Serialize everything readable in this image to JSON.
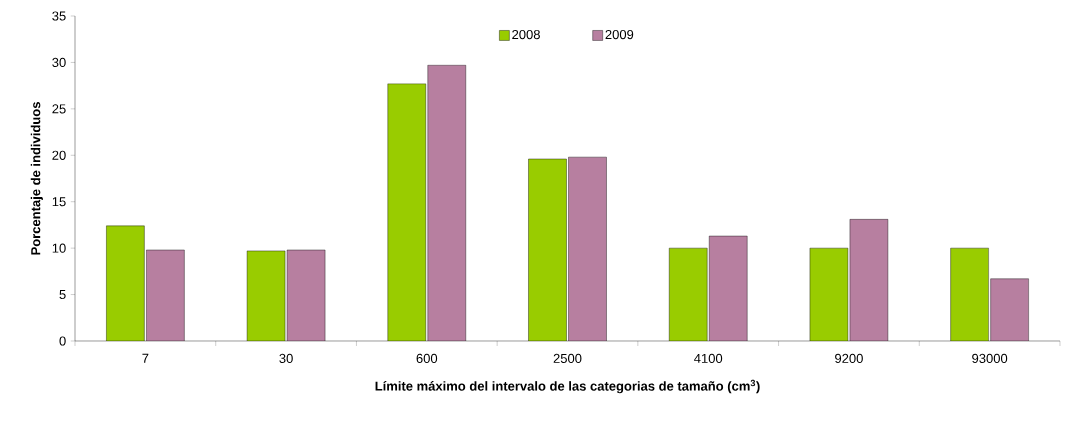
{
  "chart_data": {
    "type": "bar",
    "xlabel": "Límite máximo del intervalo de las categorias de tamaño (cm$^{3}$)",
    "ylabel": "Porcentaje de individuos",
    "categories": [
      "7",
      "30",
      "600",
      "2500",
      "4100",
      "9200",
      "93000"
    ],
    "series": [
      {
        "name": "2008",
        "color": "#99cc00",
        "values": [
          12.4,
          9.7,
          27.7,
          19.6,
          10.0,
          10.0,
          10.0
        ]
      },
      {
        "name": "2009",
        "color": "#b77fa0",
        "values": [
          9.8,
          9.8,
          29.7,
          19.8,
          11.3,
          13.1,
          6.7
        ]
      }
    ],
    "ylim": [
      0,
      35
    ],
    "yticks": [
      0,
      5,
      10,
      15,
      20,
      25,
      30,
      35
    ],
    "legend": "top",
    "grid": false
  }
}
